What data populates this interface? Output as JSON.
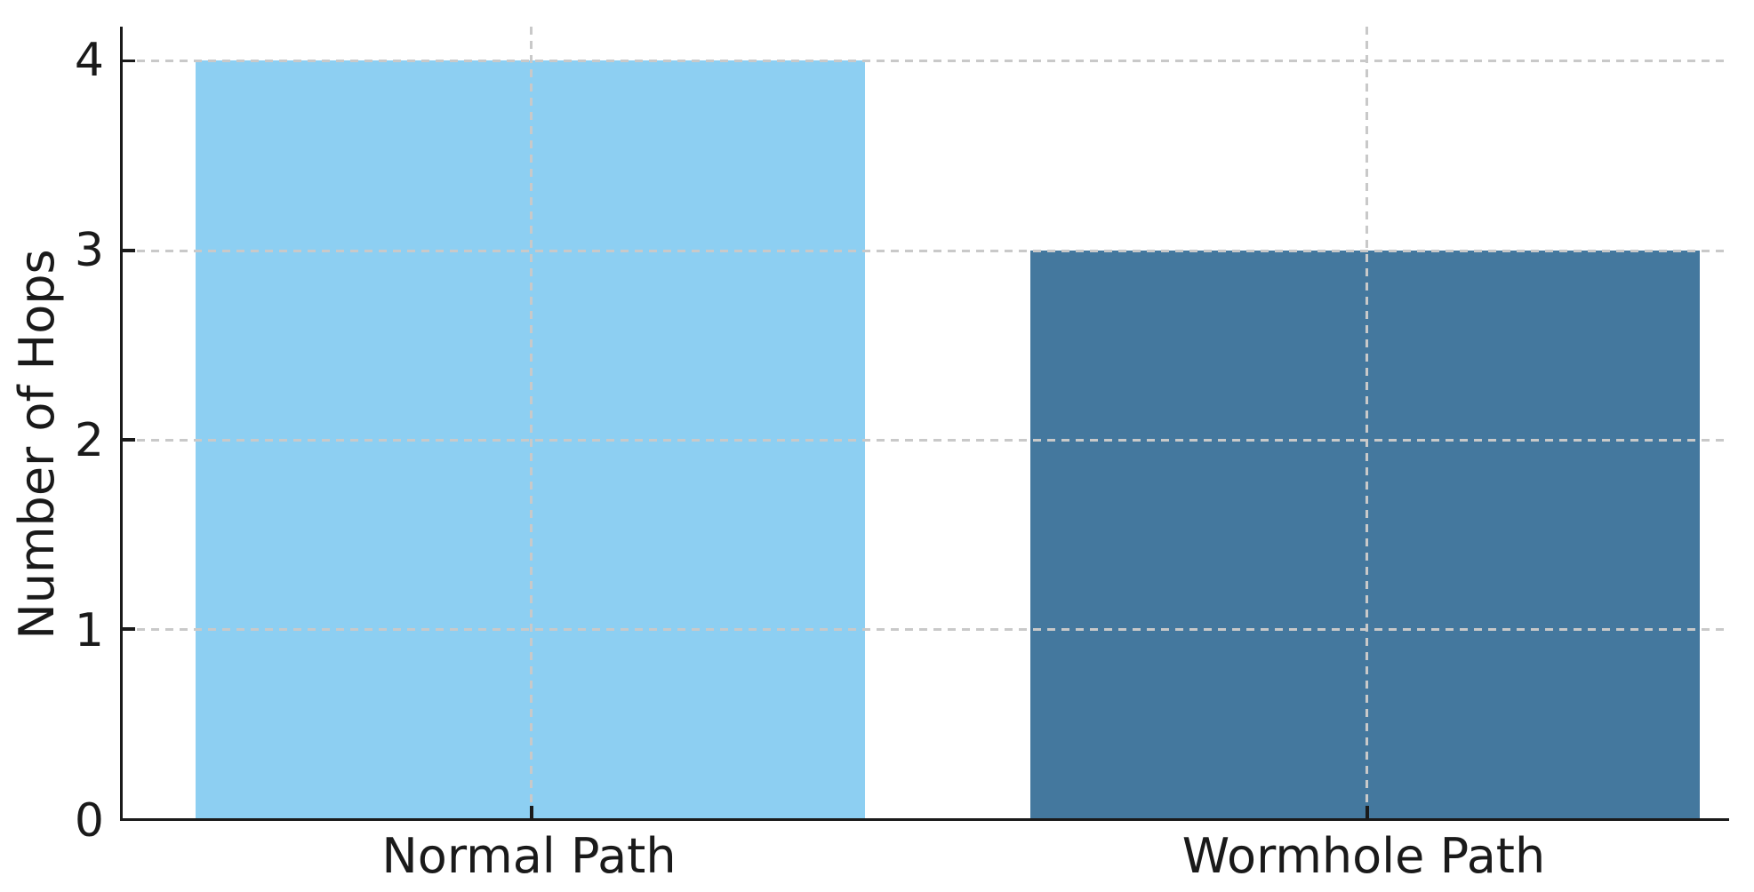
{
  "chart_data": {
    "type": "bar",
    "title": "",
    "categories": [
      "Normal Path",
      "Wormhole Path"
    ],
    "values": [
      4,
      3
    ],
    "colors": [
      "#8DCFF2",
      "#44789E"
    ],
    "xlabel": "",
    "ylabel": "Number of Hops",
    "yticks": [
      "0",
      "1",
      "2",
      "3",
      "4"
    ],
    "ytick_values": [
      0,
      1,
      2,
      3,
      4
    ],
    "ylim": [
      0,
      4.18
    ],
    "grid": "both-axes dashed",
    "gridline_color": "#c9c9c9",
    "spine_color": "#1a1a1a",
    "legend": "none"
  }
}
